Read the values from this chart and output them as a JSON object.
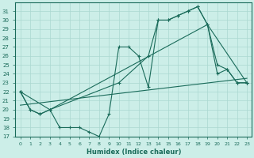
{
  "xlabel": "Humidex (Indice chaleur)",
  "bg_color": "#cceee8",
  "grid_color": "#aad8d0",
  "line_color": "#1a6b5a",
  "xlim": [
    -0.5,
    23.5
  ],
  "ylim": [
    17,
    32
  ],
  "xticks": [
    0,
    1,
    2,
    3,
    4,
    5,
    6,
    7,
    8,
    9,
    10,
    11,
    12,
    13,
    14,
    15,
    16,
    17,
    18,
    19,
    20,
    21,
    22,
    23
  ],
  "yticks": [
    17,
    18,
    19,
    20,
    21,
    22,
    23,
    24,
    25,
    26,
    27,
    28,
    29,
    30,
    31
  ],
  "line1_x": [
    0,
    1,
    2,
    3,
    4,
    5,
    6,
    7,
    8,
    9,
    10,
    11,
    12,
    13,
    14,
    15,
    16,
    17,
    18,
    19,
    20,
    21,
    22,
    23
  ],
  "line1_y": [
    22,
    20,
    19.5,
    20,
    18,
    18,
    18,
    17.5,
    17,
    19.5,
    27,
    27,
    26,
    22.5,
    30,
    30,
    30.5,
    31,
    31.5,
    29.5,
    25,
    24.5,
    23,
    23
  ],
  "line2_x": [
    0,
    1,
    2,
    3,
    10,
    13,
    14,
    15,
    16,
    17,
    18,
    19,
    20,
    21,
    22,
    23
  ],
  "line2_y": [
    22,
    20,
    19.5,
    20,
    23,
    26,
    30,
    30,
    30.5,
    31,
    31.5,
    29.5,
    24,
    24.5,
    23,
    23
  ],
  "line3_x": [
    0,
    3,
    19,
    23
  ],
  "line3_y": [
    22,
    20,
    29.5,
    23
  ],
  "line4_x": [
    0,
    23
  ],
  "line4_y": [
    20.5,
    23.5
  ]
}
